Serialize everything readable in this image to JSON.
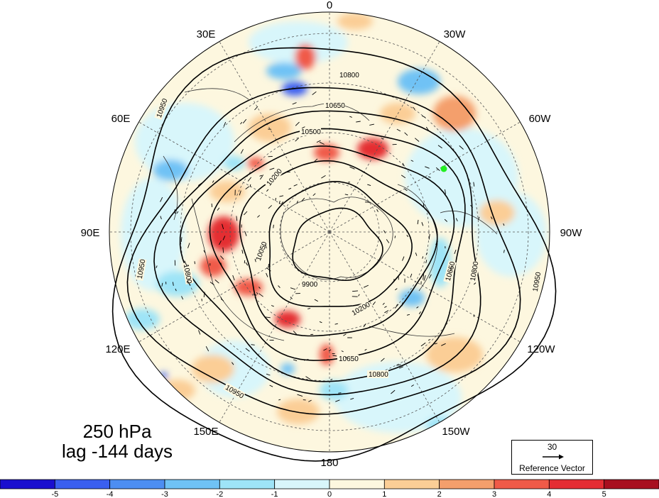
{
  "title": {
    "level": "250 hPa",
    "lag": "lag -144 days"
  },
  "longitude_labels": [
    "0",
    "30W",
    "60W",
    "90W",
    "120W",
    "150W",
    "180",
    "150E",
    "120E",
    "90E",
    "60E",
    "30E"
  ],
  "height_contours": [
    {
      "value": "9900"
    },
    {
      "value": "10050"
    },
    {
      "value": "10200"
    },
    {
      "value": "10350"
    },
    {
      "value": "10500"
    },
    {
      "value": "10650"
    },
    {
      "value": "10800"
    },
    {
      "value": "10950"
    }
  ],
  "reference_vector": {
    "magnitude": "30",
    "label": "Reference Vector"
  },
  "colorbar": {
    "ticks": [
      "-5",
      "-4",
      "-3",
      "-2",
      "-1",
      "0",
      "1",
      "2",
      "3",
      "4",
      "5"
    ],
    "colors": [
      "#1a0fcf",
      "#3a5ff0",
      "#4d8ef2",
      "#6fc2f5",
      "#9ee4f7",
      "#d8f6fb",
      "#fdf7df",
      "#fbce96",
      "#f49f6c",
      "#f05a48",
      "#e42d33",
      "#a80f1f"
    ]
  },
  "marker_color": "#22ee22"
}
